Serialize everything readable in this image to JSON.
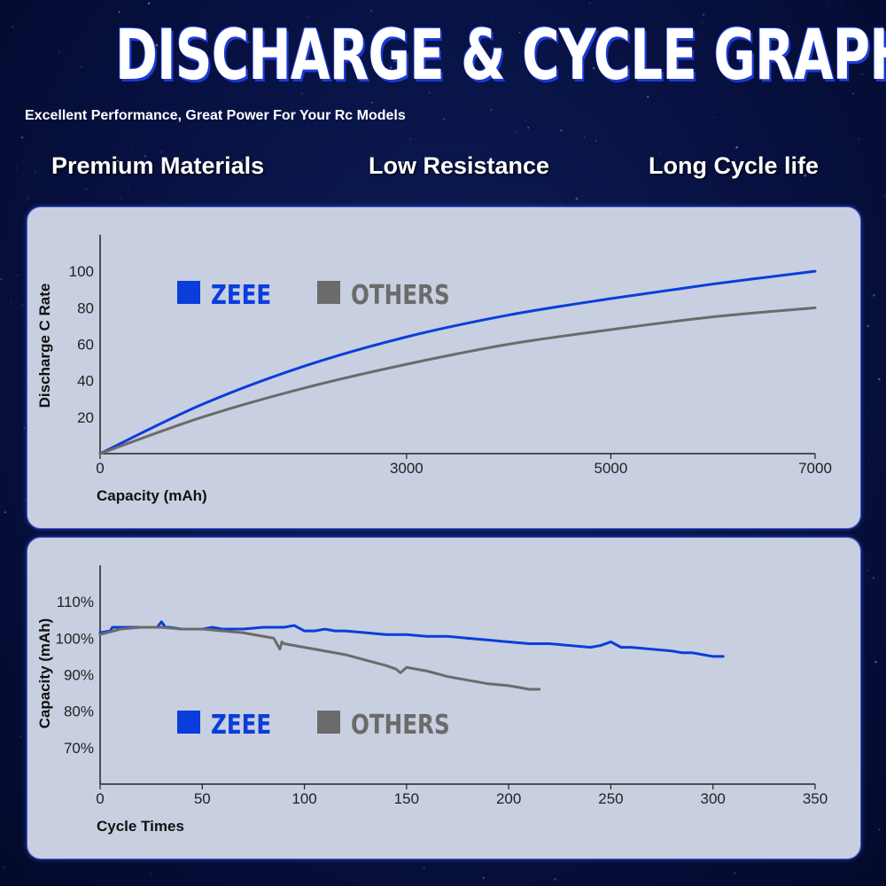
{
  "header": {
    "title": "DISCHARGE & CYCLE GRAPH",
    "subtitle": "Excellent Performance, Great Power For Your Rc Models",
    "features": [
      "Premium Materials",
      "Low Resistance",
      "Long Cycle life"
    ]
  },
  "colors": {
    "zeee": "#0a3ddc",
    "others": "#6b6b6b"
  },
  "chart_data": [
    {
      "type": "line",
      "xlabel": "Capacity (mAh)",
      "ylabel": "Discharge C Rate",
      "xlim": [
        0,
        7000
      ],
      "ylim": [
        0,
        120
      ],
      "x_ticks": [
        0,
        3000,
        5000,
        7000
      ],
      "x_tick_labels": [
        "0",
        "3000",
        "5000",
        "7000"
      ],
      "y_ticks": [
        20,
        40,
        60,
        80,
        100
      ],
      "y_tick_labels": [
        "20",
        "40",
        "60",
        "80",
        "100"
      ],
      "legend": [
        "ZEEE",
        "OTHERS"
      ],
      "legend_placement": "top-left",
      "series": [
        {
          "name": "ZEEE",
          "x": [
            0,
            1000,
            2000,
            3000,
            4000,
            5000,
            6000,
            7000
          ],
          "values": [
            0,
            27,
            48,
            64,
            76,
            85,
            93,
            100
          ]
        },
        {
          "name": "OTHERS",
          "x": [
            0,
            1000,
            2000,
            3000,
            4000,
            5000,
            6000,
            7000
          ],
          "values": [
            0,
            20,
            36,
            49,
            60,
            68,
            75,
            80
          ]
        }
      ]
    },
    {
      "type": "line",
      "xlabel": "Cycle Times",
      "ylabel": "Capacity (mAh)",
      "xlim": [
        0,
        350
      ],
      "ylim": [
        60,
        120
      ],
      "x_ticks": [
        0,
        50,
        100,
        150,
        200,
        250,
        300,
        350
      ],
      "x_tick_labels": [
        "0",
        "50",
        "100",
        "150",
        "200",
        "250",
        "300",
        "350"
      ],
      "y_ticks": [
        70,
        80,
        90,
        100,
        110
      ],
      "y_tick_labels": [
        "70%",
        "80%",
        "90%",
        "100%",
        "110%"
      ],
      "legend": [
        "ZEEE",
        "OTHERS"
      ],
      "legend_placement": "bottom-left",
      "series": [
        {
          "name": "ZEEE",
          "x": [
            0,
            5,
            6,
            10,
            20,
            28,
            30,
            32,
            34,
            40,
            50,
            55,
            60,
            70,
            80,
            90,
            95,
            100,
            105,
            110,
            115,
            120,
            130,
            140,
            150,
            160,
            170,
            180,
            190,
            200,
            210,
            220,
            230,
            240,
            245,
            250,
            255,
            260,
            270,
            280,
            285,
            290,
            295,
            300,
            305
          ],
          "values": [
            101.5,
            102,
            103,
            103,
            103,
            103,
            104.5,
            103,
            103,
            102.5,
            102.5,
            103,
            102.5,
            102.5,
            103,
            103,
            103.5,
            102,
            102,
            102.5,
            102,
            102,
            101.5,
            101,
            101,
            100.5,
            100.5,
            100,
            99.5,
            99,
            98.5,
            98.5,
            98,
            97.5,
            98,
            99,
            97.5,
            97.5,
            97,
            96.5,
            96,
            96,
            95.5,
            95,
            95
          ]
        },
        {
          "name": "OTHERS",
          "x": [
            0,
            10,
            20,
            30,
            40,
            50,
            60,
            70,
            80,
            85,
            88,
            89,
            90,
            100,
            110,
            120,
            130,
            140,
            145,
            147,
            150,
            160,
            170,
            175,
            180,
            190,
            200,
            205,
            210,
            215
          ],
          "values": [
            101,
            102.5,
            103,
            103,
            102.5,
            102.5,
            102,
            101.5,
            100.5,
            100,
            97,
            99,
            98.5,
            97.5,
            96.5,
            95.5,
            94,
            92.5,
            91.5,
            90.5,
            92,
            91,
            89.5,
            89,
            88.5,
            87.5,
            87,
            86.5,
            86,
            86
          ]
        }
      ]
    }
  ]
}
